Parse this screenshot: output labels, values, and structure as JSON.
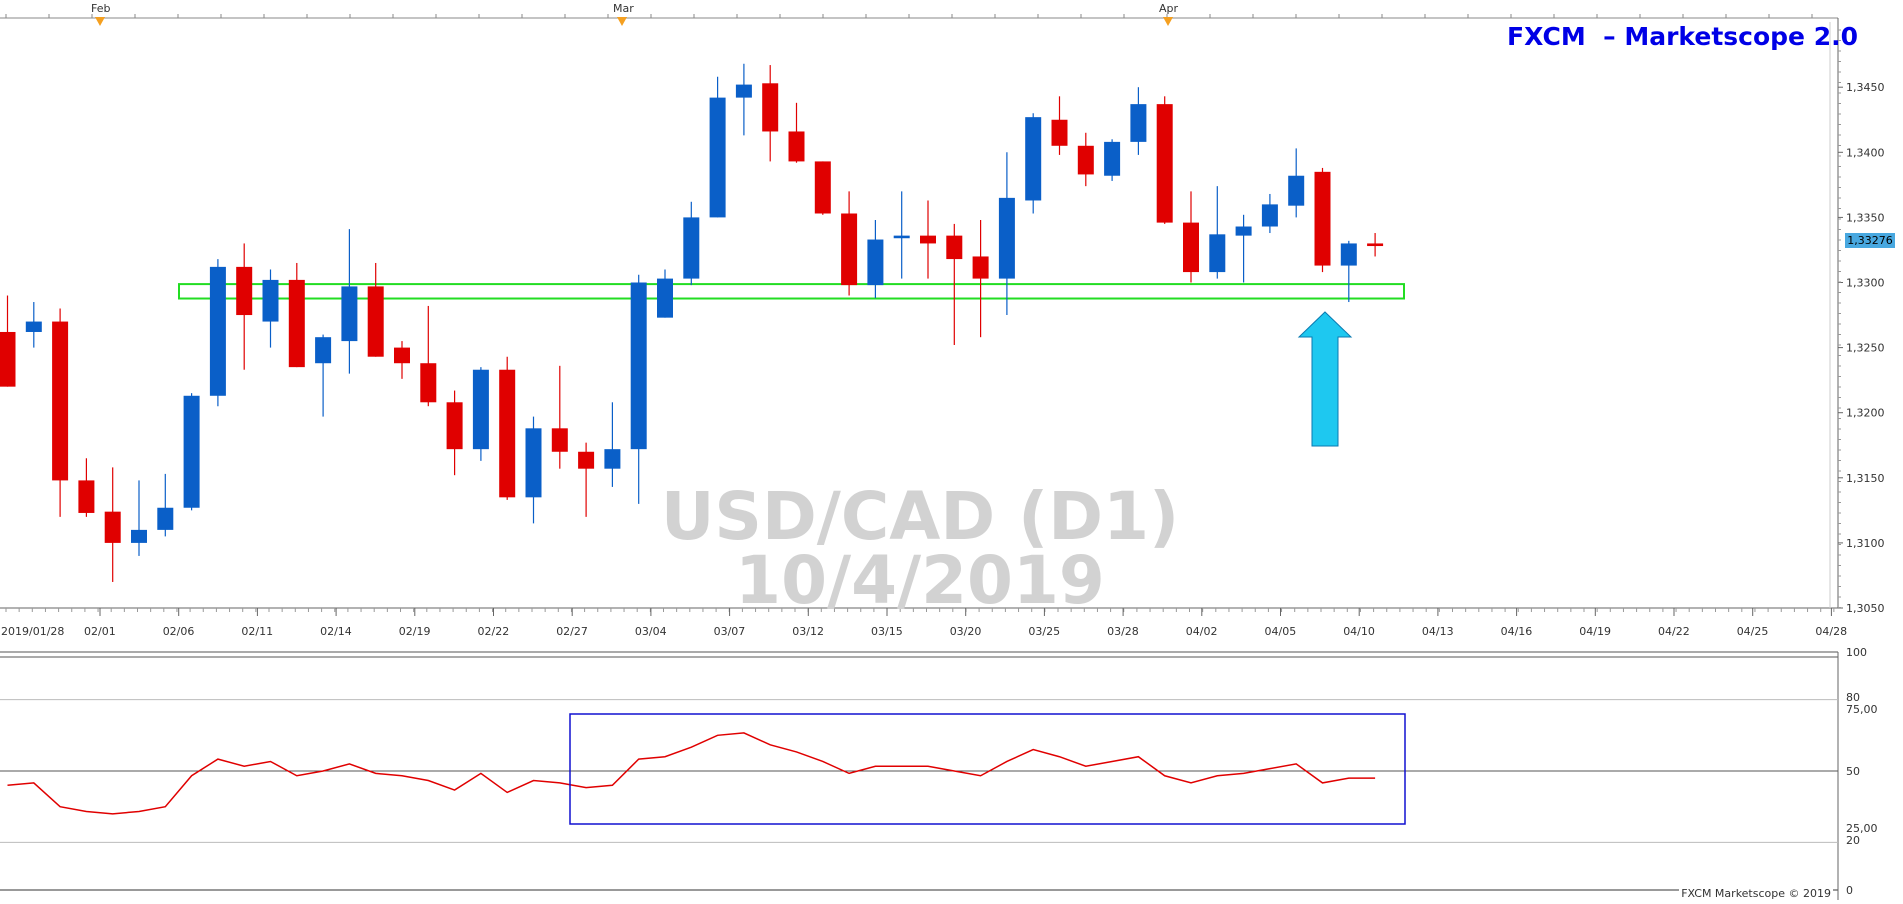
{
  "brand": {
    "label": "FXCM  – Marketscope 2.0"
  },
  "watermark": {
    "line1": "USD/CAD (D1)",
    "line2": "10/4/2019"
  },
  "copyright": "FXCM Marketscope © 2019",
  "current_price_label": "1,33276",
  "colors": {
    "bull": "#0a5fc8",
    "bear": "#e00000",
    "support_zone": "#22dd22",
    "arrow": "#1ec8f0",
    "rsi_line": "#e00000",
    "rsi_box": "#1010d0"
  },
  "chart_data": [
    {
      "type": "candlestick",
      "title": "USD/CAD (D1)",
      "ylim": [
        1.305,
        1.3475
      ],
      "y_ticks": [
        "1,3050",
        "1,3100",
        "1,3150",
        "1,3200",
        "1,3250",
        "1,3300",
        "1,3350",
        "1,3400",
        "1,3450"
      ],
      "x_ticks": [
        "2019/01/28",
        "02/01",
        "02/06",
        "02/11",
        "02/14",
        "02/19",
        "02/22",
        "02/27",
        "03/04",
        "03/07",
        "03/12",
        "03/15",
        "03/20",
        "03/25",
        "03/28",
        "04/02",
        "04/05",
        "04/10",
        "04/13",
        "04/16",
        "04/19",
        "04/22",
        "04/25",
        "04/28"
      ],
      "month_markers": [
        "Feb",
        "Mar",
        "Apr"
      ],
      "support_zone": {
        "low": 1.329,
        "high": 1.3298
      },
      "last_price": 1.33276,
      "candles": [
        {
          "o": 1.3262,
          "h": 1.329,
          "l": 1.322,
          "c": 1.322
        },
        {
          "o": 1.3262,
          "h": 1.3285,
          "l": 1.325,
          "c": 1.327
        },
        {
          "o": 1.327,
          "h": 1.328,
          "l": 1.312,
          "c": 1.3148
        },
        {
          "o": 1.3148,
          "h": 1.3165,
          "l": 1.312,
          "c": 1.3123
        },
        {
          "o": 1.3124,
          "h": 1.3158,
          "l": 1.307,
          "c": 1.31
        },
        {
          "o": 1.31,
          "h": 1.3148,
          "l": 1.309,
          "c": 1.311
        },
        {
          "o": 1.311,
          "h": 1.3153,
          "l": 1.3105,
          "c": 1.3127
        },
        {
          "o": 1.3127,
          "h": 1.3215,
          "l": 1.3125,
          "c": 1.3213
        },
        {
          "o": 1.3213,
          "h": 1.3318,
          "l": 1.3205,
          "c": 1.3312
        },
        {
          "o": 1.3312,
          "h": 1.333,
          "l": 1.3233,
          "c": 1.3275
        },
        {
          "o": 1.327,
          "h": 1.331,
          "l": 1.325,
          "c": 1.3302
        },
        {
          "o": 1.3302,
          "h": 1.3315,
          "l": 1.3235,
          "c": 1.3235
        },
        {
          "o": 1.3238,
          "h": 1.326,
          "l": 1.3197,
          "c": 1.3258
        },
        {
          "o": 1.3255,
          "h": 1.3341,
          "l": 1.323,
          "c": 1.3297
        },
        {
          "o": 1.3297,
          "h": 1.3315,
          "l": 1.3243,
          "c": 1.3243
        },
        {
          "o": 1.325,
          "h": 1.3255,
          "l": 1.3226,
          "c": 1.3238
        },
        {
          "o": 1.3238,
          "h": 1.3282,
          "l": 1.3205,
          "c": 1.3208
        },
        {
          "o": 1.3208,
          "h": 1.3217,
          "l": 1.3152,
          "c": 1.3172
        },
        {
          "o": 1.3172,
          "h": 1.3235,
          "l": 1.3163,
          "c": 1.3233
        },
        {
          "o": 1.3233,
          "h": 1.3243,
          "l": 1.3133,
          "c": 1.3135
        },
        {
          "o": 1.3135,
          "h": 1.3197,
          "l": 1.3115,
          "c": 1.3188
        },
        {
          "o": 1.3188,
          "h": 1.3236,
          "l": 1.3157,
          "c": 1.317
        },
        {
          "o": 1.317,
          "h": 1.3177,
          "l": 1.312,
          "c": 1.3157
        },
        {
          "o": 1.3157,
          "h": 1.3208,
          "l": 1.3143,
          "c": 1.3172
        },
        {
          "o": 1.3172,
          "h": 1.3306,
          "l": 1.313,
          "c": 1.33
        },
        {
          "o": 1.3273,
          "h": 1.331,
          "l": 1.3273,
          "c": 1.3303
        },
        {
          "o": 1.3303,
          "h": 1.3362,
          "l": 1.3298,
          "c": 1.335
        },
        {
          "o": 1.335,
          "h": 1.3458,
          "l": 1.335,
          "c": 1.3442
        },
        {
          "o": 1.3442,
          "h": 1.3468,
          "l": 1.3413,
          "c": 1.3452
        },
        {
          "o": 1.3453,
          "h": 1.3467,
          "l": 1.3393,
          "c": 1.3416
        },
        {
          "o": 1.3416,
          "h": 1.3438,
          "l": 1.3392,
          "c": 1.3393
        },
        {
          "o": 1.3393,
          "h": 1.3393,
          "l": 1.3352,
          "c": 1.3353
        },
        {
          "o": 1.3353,
          "h": 1.337,
          "l": 1.329,
          "c": 1.3298
        },
        {
          "o": 1.3298,
          "h": 1.3348,
          "l": 1.3288,
          "c": 1.3333
        },
        {
          "o": 1.3334,
          "h": 1.337,
          "l": 1.3303,
          "c": 1.3336
        },
        {
          "o": 1.3336,
          "h": 1.3363,
          "l": 1.3303,
          "c": 1.333
        },
        {
          "o": 1.3336,
          "h": 1.3345,
          "l": 1.3252,
          "c": 1.3318
        },
        {
          "o": 1.332,
          "h": 1.3348,
          "l": 1.3258,
          "c": 1.3303
        },
        {
          "o": 1.3303,
          "h": 1.34,
          "l": 1.3275,
          "c": 1.3365
        },
        {
          "o": 1.3363,
          "h": 1.343,
          "l": 1.3353,
          "c": 1.3427
        },
        {
          "o": 1.3425,
          "h": 1.3443,
          "l": 1.3398,
          "c": 1.3405
        },
        {
          "o": 1.3405,
          "h": 1.3415,
          "l": 1.3374,
          "c": 1.3383
        },
        {
          "o": 1.3382,
          "h": 1.341,
          "l": 1.3378,
          "c": 1.3408
        },
        {
          "o": 1.3408,
          "h": 1.345,
          "l": 1.3398,
          "c": 1.3437
        },
        {
          "o": 1.3437,
          "h": 1.3443,
          "l": 1.3345,
          "c": 1.3346
        },
        {
          "o": 1.3346,
          "h": 1.337,
          "l": 1.33,
          "c": 1.3308
        },
        {
          "o": 1.3308,
          "h": 1.3374,
          "l": 1.3303,
          "c": 1.3337
        },
        {
          "o": 1.3336,
          "h": 1.3352,
          "l": 1.33,
          "c": 1.3343
        },
        {
          "o": 1.3343,
          "h": 1.3368,
          "l": 1.3338,
          "c": 1.336
        },
        {
          "o": 1.3359,
          "h": 1.3403,
          "l": 1.335,
          "c": 1.3382
        },
        {
          "o": 1.3385,
          "h": 1.3388,
          "l": 1.3308,
          "c": 1.3313
        },
        {
          "o": 1.3313,
          "h": 1.3332,
          "l": 1.3285,
          "c": 1.333
        },
        {
          "o": 1.333,
          "h": 1.3338,
          "l": 1.332,
          "c": 1.3328
        }
      ]
    },
    {
      "type": "line",
      "title": "RSI",
      "ylim": [
        0,
        100
      ],
      "y_ticks": [
        "100",
        "80",
        "75,00",
        "50",
        "25,00",
        "20",
        "0"
      ],
      "levels": [
        80,
        50,
        20
      ],
      "values": [
        44,
        45,
        35,
        33,
        32,
        33,
        35,
        48,
        55,
        52,
        54,
        48,
        50,
        53,
        49,
        48,
        46,
        42,
        49,
        41,
        46,
        45,
        43,
        44,
        55,
        56,
        60,
        65,
        66,
        61,
        58,
        54,
        49,
        52,
        52,
        52,
        50,
        48,
        54,
        59,
        56,
        52,
        54,
        56,
        48,
        45,
        48,
        49,
        51,
        53,
        45,
        47,
        47
      ]
    }
  ]
}
